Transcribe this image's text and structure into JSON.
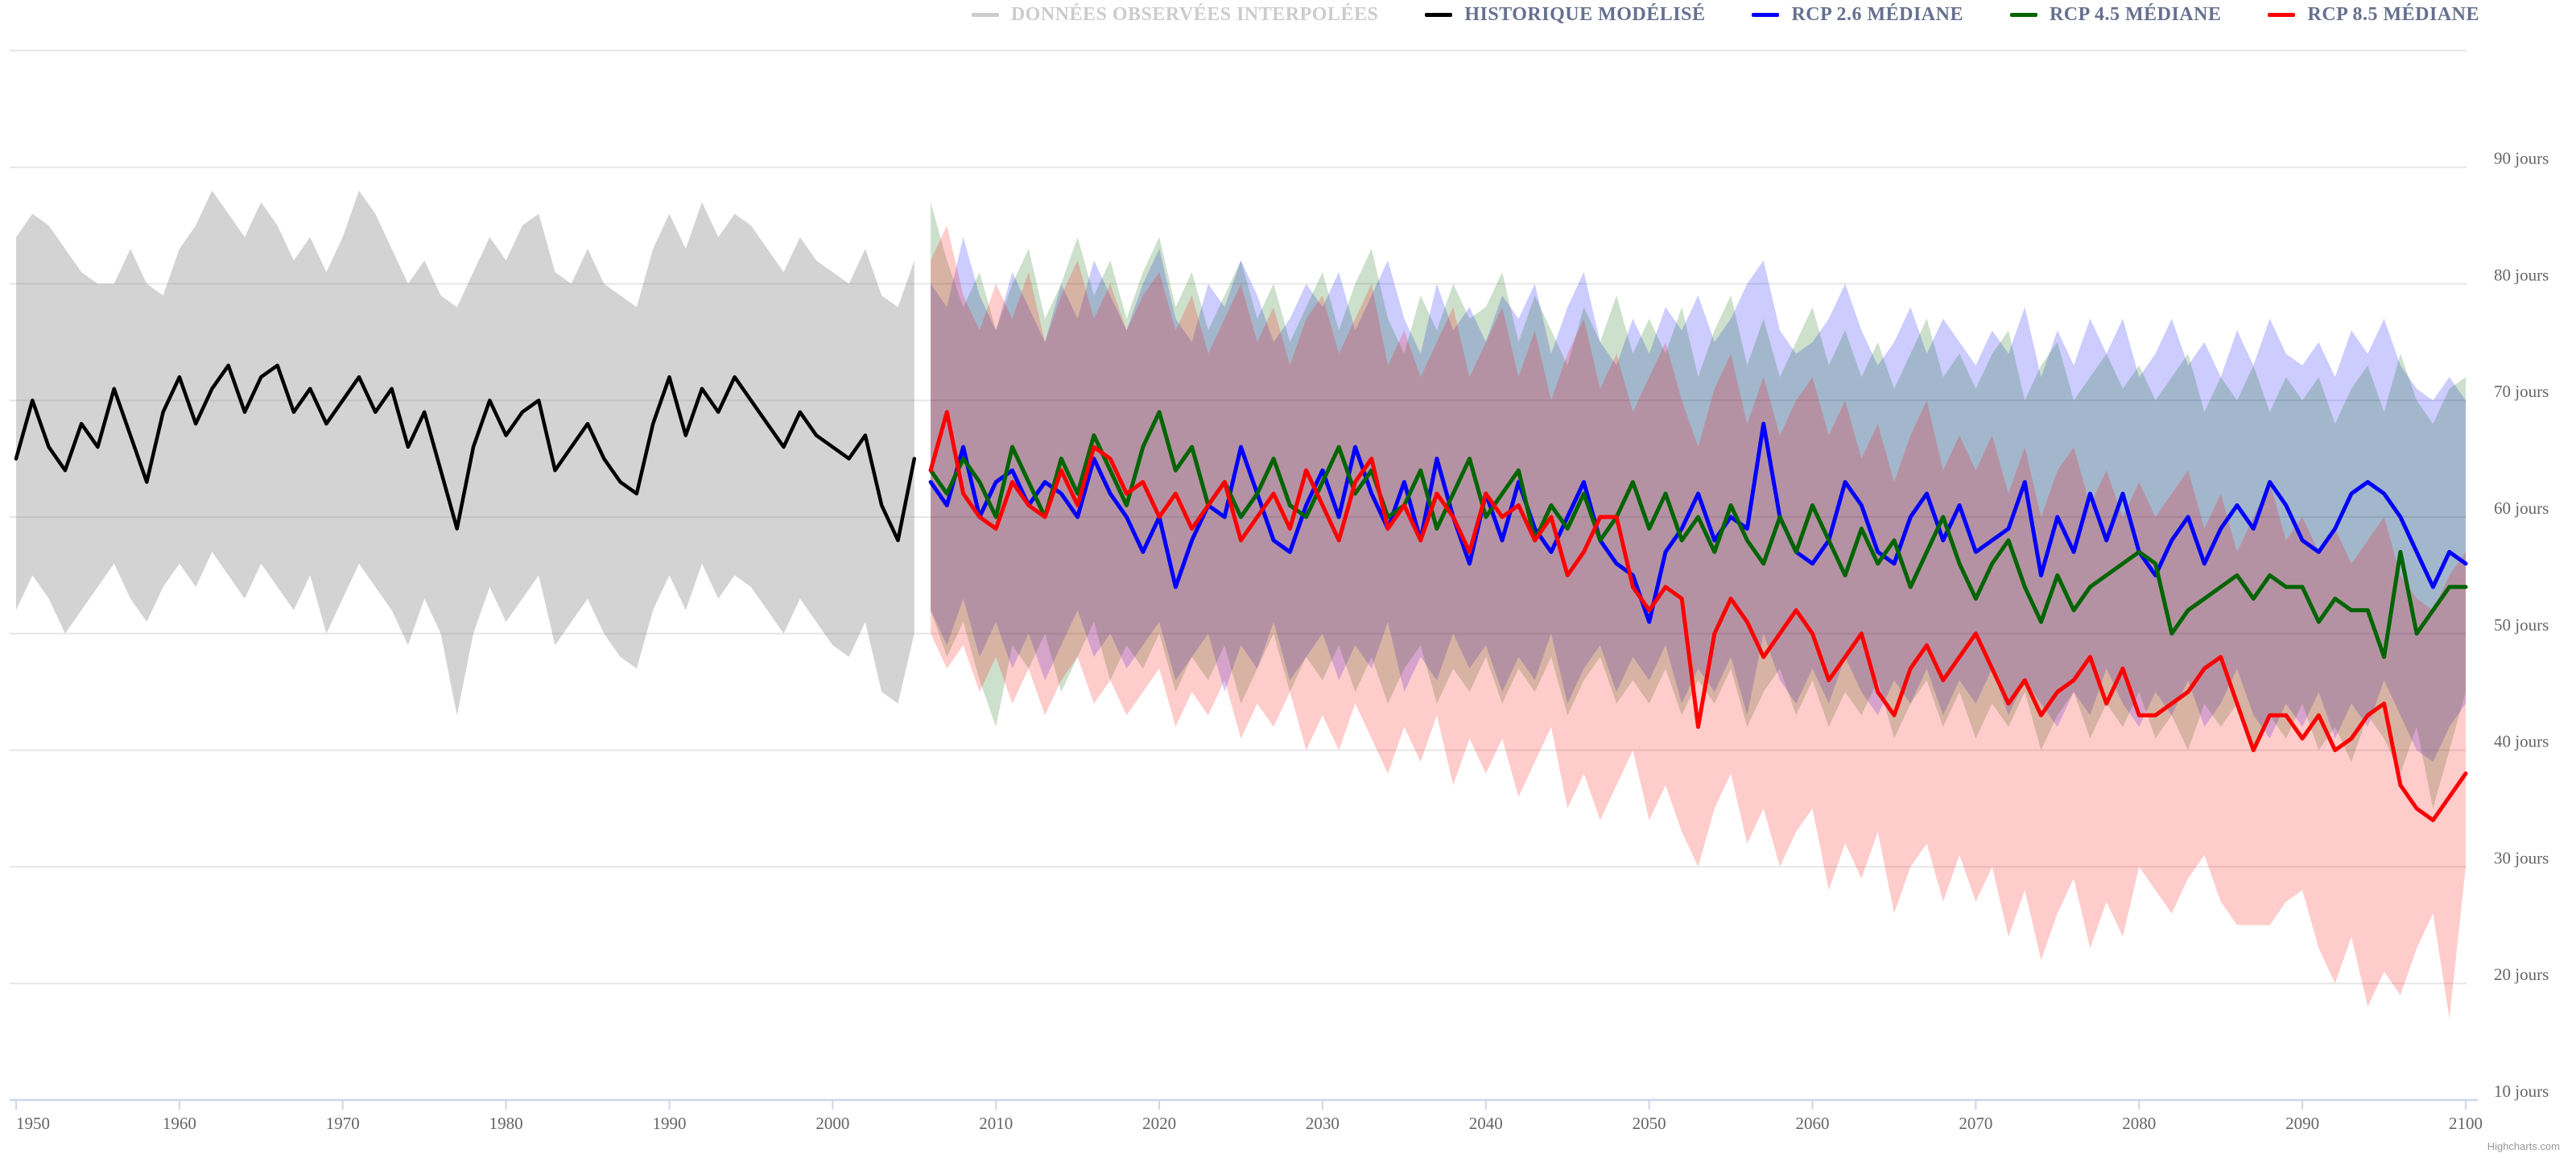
{
  "legend": {
    "items": [
      {
        "id": "donnees-observees-interpolees",
        "label": "DONNÉES OBSERVÉES INTERPOLÉES",
        "marker_color": "#cccccc",
        "text_color": "#cccccc",
        "disabled": true
      },
      {
        "id": "historique-modelise",
        "label": "HISTORIQUE MODÉLISÉ",
        "marker_color": "#000000",
        "text_color": "#66708f",
        "disabled": false
      },
      {
        "id": "rcp-26-mediane",
        "label": "RCP 2.6 MÉDIANE",
        "marker_color": "#0000ff",
        "text_color": "#66708f",
        "disabled": false
      },
      {
        "id": "rcp-45-mediane",
        "label": "RCP 4.5 MÉDIANE",
        "marker_color": "#006400",
        "text_color": "#66708f",
        "disabled": false
      },
      {
        "id": "rcp-85-mediane",
        "label": "RCP 8.5 MÉDIANE",
        "marker_color": "#ff0000",
        "text_color": "#66708f",
        "disabled": false
      }
    ]
  },
  "credit": "Highcharts.com",
  "colors": {
    "grid_line": "#e6e6e6",
    "axis_line": "#ccd6eb",
    "axis_label": "#666666",
    "credit": "#999999",
    "background": "#ffffff"
  },
  "chart_data": {
    "type": "line",
    "title": "",
    "xlabel": "",
    "ylabel": "jours",
    "grid": true,
    "legend_position": "top-right",
    "x_range": [
      1950,
      2100
    ],
    "x_ticks": [
      1950,
      1960,
      1970,
      1980,
      1990,
      2000,
      2010,
      2020,
      2030,
      2040,
      2050,
      2060,
      2070,
      2080,
      2090,
      2100
    ],
    "y_axis": {
      "min": 10,
      "max": 100,
      "tick_interval": 10,
      "label_min": 10,
      "label_max": 90,
      "unit_suffix": " jours"
    },
    "series": [
      {
        "name": "Historique modélisé (plage)",
        "type": "arearange",
        "fill": "rgba(128,128,128,0.35)",
        "start_year": 1950,
        "upper": [
          84,
          86,
          85,
          83,
          81,
          80,
          80,
          83,
          80,
          79,
          83,
          85,
          88,
          86,
          84,
          87,
          85,
          82,
          84,
          81,
          84,
          88,
          86,
          83,
          80,
          82,
          79,
          78,
          81,
          84,
          82,
          85,
          86,
          81,
          80,
          83,
          80,
          79,
          78,
          83,
          86,
          83,
          87,
          84,
          86,
          85,
          83,
          81,
          84,
          82,
          81,
          80,
          83,
          79,
          78,
          82
        ],
        "lower": [
          52,
          55,
          53,
          50,
          52,
          54,
          56,
          53,
          51,
          54,
          56,
          54,
          57,
          55,
          53,
          56,
          54,
          52,
          55,
          50,
          53,
          56,
          54,
          52,
          49,
          53,
          50,
          43,
          50,
          54,
          51,
          53,
          55,
          49,
          51,
          53,
          50,
          48,
          47,
          52,
          55,
          52,
          56,
          53,
          55,
          54,
          52,
          50,
          53,
          51,
          49,
          48,
          51,
          45,
          44,
          50
        ]
      },
      {
        "name": "RCP 2.6 (plage)",
        "type": "arearange",
        "fill": "rgba(0,0,255,0.2)",
        "start_year": 2006,
        "upper": [
          80,
          78,
          84,
          79,
          76,
          81,
          78,
          75,
          80,
          77,
          82,
          79,
          76,
          80,
          83,
          77,
          75,
          80,
          78,
          82,
          79,
          75,
          77,
          80,
          78,
          81,
          76,
          79,
          82,
          77,
          74,
          80,
          76,
          78,
          75,
          79,
          77,
          80,
          74,
          78,
          81,
          75,
          73,
          77,
          74,
          78,
          76,
          79,
          75,
          77,
          80,
          82,
          76,
          74,
          75,
          77,
          80,
          76,
          73,
          75,
          78,
          74,
          77,
          75,
          73,
          76,
          74,
          78,
          72,
          76,
          73,
          77,
          74,
          77,
          72,
          74,
          77,
          73,
          75,
          72,
          76,
          73,
          77,
          74,
          73,
          75,
          72,
          76,
          74,
          77,
          73,
          71,
          70,
          72,
          70
        ],
        "lower": [
          52,
          49,
          53,
          48,
          51,
          47,
          50,
          46,
          49,
          52,
          48,
          50,
          47,
          49,
          51,
          46,
          48,
          50,
          45,
          49,
          47,
          51,
          46,
          48,
          50,
          46,
          49,
          47,
          51,
          45,
          48,
          46,
          50,
          47,
          49,
          45,
          48,
          46,
          50,
          44,
          47,
          49,
          45,
          48,
          46,
          49,
          44,
          47,
          45,
          48,
          43,
          50,
          46,
          44,
          47,
          44,
          48,
          45,
          43,
          46,
          44,
          47,
          43,
          46,
          44,
          47,
          43,
          46,
          44,
          42,
          45,
          43,
          47,
          44,
          42,
          45,
          43,
          46,
          42,
          44,
          47,
          43,
          41,
          44,
          42,
          45,
          41,
          44,
          42,
          46,
          43,
          40,
          39,
          42,
          44
        ]
      },
      {
        "name": "RCP 4.5 (plage)",
        "type": "arearange",
        "fill": "rgba(0,100,0,0.2)",
        "start_year": 2006,
        "upper": [
          87,
          82,
          78,
          81,
          76,
          80,
          83,
          77,
          80,
          84,
          79,
          82,
          77,
          81,
          84,
          78,
          81,
          76,
          79,
          82,
          77,
          80,
          75,
          78,
          81,
          76,
          80,
          83,
          77,
          74,
          79,
          76,
          80,
          77,
          78,
          81,
          75,
          79,
          76,
          73,
          78,
          75,
          79,
          74,
          77,
          74,
          78,
          72,
          76,
          79,
          73,
          77,
          72,
          75,
          78,
          73,
          76,
          72,
          75,
          71,
          74,
          77,
          72,
          74,
          71,
          74,
          76,
          70,
          73,
          75,
          70,
          72,
          74,
          71,
          73,
          70,
          72,
          74,
          69,
          72,
          70,
          73,
          69,
          72,
          70,
          72,
          68,
          71,
          73,
          69,
          74,
          70,
          68,
          71,
          72
        ],
        "lower": [
          52,
          48,
          51,
          46,
          42,
          49,
          47,
          50,
          45,
          48,
          51,
          46,
          49,
          47,
          50,
          45,
          48,
          46,
          49,
          44,
          47,
          50,
          45,
          48,
          46,
          49,
          45,
          48,
          44,
          47,
          49,
          44,
          47,
          45,
          48,
          44,
          47,
          45,
          48,
          43,
          46,
          48,
          44,
          46,
          44,
          47,
          43,
          46,
          44,
          47,
          42,
          45,
          47,
          43,
          46,
          42,
          45,
          43,
          46,
          41,
          44,
          46,
          42,
          45,
          41,
          44,
          42,
          45,
          40,
          43,
          45,
          41,
          44,
          42,
          45,
          41,
          43,
          40,
          44,
          42,
          44,
          40,
          43,
          41,
          44,
          40,
          42,
          39,
          43,
          41,
          38,
          42,
          35,
          40,
          45
        ]
      },
      {
        "name": "RCP 8.5 (plage)",
        "type": "arearange",
        "fill": "rgba(255,0,0,0.2)",
        "start_year": 2006,
        "upper": [
          82,
          85,
          79,
          76,
          80,
          77,
          81,
          75,
          79,
          82,
          77,
          80,
          76,
          79,
          81,
          76,
          79,
          74,
          77,
          80,
          75,
          78,
          73,
          77,
          79,
          74,
          77,
          80,
          73,
          76,
          72,
          75,
          78,
          72,
          75,
          78,
          72,
          76,
          70,
          74,
          77,
          71,
          74,
          69,
          72,
          75,
          70,
          66,
          71,
          74,
          68,
          72,
          67,
          70,
          72,
          67,
          70,
          65,
          68,
          63,
          67,
          70,
          64,
          67,
          64,
          67,
          62,
          66,
          60,
          64,
          66,
          61,
          64,
          60,
          63,
          60,
          62,
          64,
          59,
          62,
          57,
          60,
          63,
          58,
          60,
          57,
          59,
          56,
          58,
          60,
          55,
          53,
          52,
          55,
          57
        ],
        "lower": [
          50,
          47,
          49,
          45,
          48,
          44,
          47,
          43,
          46,
          48,
          44,
          46,
          43,
          45,
          47,
          42,
          45,
          43,
          46,
          41,
          44,
          42,
          45,
          40,
          43,
          40,
          44,
          41,
          38,
          42,
          39,
          43,
          37,
          41,
          38,
          41,
          36,
          39,
          42,
          35,
          38,
          34,
          37,
          40,
          34,
          37,
          33,
          30,
          35,
          38,
          32,
          35,
          30,
          33,
          35,
          28,
          32,
          29,
          33,
          26,
          30,
          32,
          27,
          31,
          27,
          30,
          24,
          28,
          22,
          26,
          29,
          23,
          27,
          24,
          30,
          28,
          26,
          29,
          31,
          27,
          25,
          25,
          25,
          27,
          28,
          23,
          20,
          24,
          18,
          21,
          19,
          23,
          26,
          17,
          30
        ]
      },
      {
        "name": "Historique modélisé",
        "type": "line",
        "color": "#000000",
        "width": 4.5,
        "start_year": 1950,
        "values": [
          65,
          70,
          66,
          64,
          68,
          66,
          71,
          67,
          63,
          69,
          72,
          68,
          71,
          73,
          69,
          72,
          73,
          69,
          71,
          68,
          70,
          72,
          69,
          71,
          66,
          69,
          64,
          59,
          66,
          70,
          67,
          69,
          70,
          64,
          66,
          68,
          65,
          63,
          62,
          68,
          72,
          67,
          71,
          69,
          72,
          70,
          68,
          66,
          69,
          67,
          66,
          65,
          67,
          61,
          58,
          65
        ]
      },
      {
        "name": "RCP 2.6 médiane",
        "type": "line",
        "color": "#0000ff",
        "width": 5,
        "start_year": 2006,
        "values": [
          63,
          61,
          66,
          60,
          63,
          64,
          61,
          63,
          62,
          60,
          65,
          62,
          60,
          57,
          60,
          54,
          58,
          61,
          60,
          66,
          62,
          58,
          57,
          61,
          64,
          60,
          66,
          62,
          59,
          63,
          58,
          65,
          60,
          56,
          62,
          58,
          63,
          59,
          57,
          60,
          63,
          58,
          56,
          55,
          51,
          57,
          59,
          62,
          58,
          60,
          59,
          68,
          60,
          57,
          56,
          58,
          63,
          61,
          57,
          56,
          60,
          62,
          58,
          61,
          57,
          58,
          59,
          63,
          55,
          60,
          57,
          62,
          58,
          62,
          57,
          55,
          58,
          60,
          56,
          59,
          61,
          59,
          63,
          61,
          58,
          57,
          59,
          62,
          63,
          62,
          60,
          57,
          54,
          57,
          56
        ]
      },
      {
        "name": "RCP 4.5 médiane",
        "type": "line",
        "color": "#006400",
        "width": 5,
        "start_year": 2006,
        "values": [
          64,
          62,
          65,
          63,
          60,
          66,
          63,
          60,
          65,
          62,
          67,
          64,
          61,
          66,
          69,
          64,
          66,
          61,
          63,
          60,
          62,
          65,
          61,
          60,
          63,
          66,
          62,
          64,
          60,
          61,
          64,
          59,
          62,
          65,
          60,
          62,
          64,
          58,
          61,
          59,
          62,
          58,
          60,
          63,
          59,
          62,
          58,
          60,
          57,
          61,
          58,
          56,
          60,
          57,
          61,
          58,
          55,
          59,
          56,
          58,
          54,
          57,
          60,
          56,
          53,
          56,
          58,
          54,
          51,
          55,
          52,
          54,
          55,
          56,
          57,
          56,
          50,
          52,
          53,
          54,
          55,
          53,
          55,
          54,
          54,
          51,
          53,
          52,
          52,
          48,
          57,
          50,
          52,
          54,
          54
        ]
      },
      {
        "name": "RCP 8.5 médiane",
        "type": "line",
        "color": "#ff0000",
        "width": 5,
        "start_year": 2006,
        "values": [
          64,
          69,
          62,
          60,
          59,
          63,
          61,
          60,
          64,
          61,
          66,
          65,
          62,
          63,
          60,
          62,
          59,
          61,
          63,
          58,
          60,
          62,
          59,
          64,
          61,
          58,
          63,
          65,
          59,
          61,
          58,
          62,
          60,
          57,
          62,
          60,
          61,
          58,
          60,
          55,
          57,
          60,
          60,
          54,
          52,
          54,
          53,
          42,
          50,
          53,
          51,
          48,
          50,
          52,
          50,
          46,
          48,
          50,
          45,
          43,
          47,
          49,
          46,
          48,
          50,
          47,
          44,
          46,
          43,
          45,
          46,
          48,
          44,
          47,
          43,
          43,
          44,
          45,
          47,
          48,
          44,
          40,
          43,
          43,
          41,
          43,
          40,
          41,
          43,
          44,
          37,
          35,
          34,
          36,
          38
        ]
      }
    ]
  }
}
